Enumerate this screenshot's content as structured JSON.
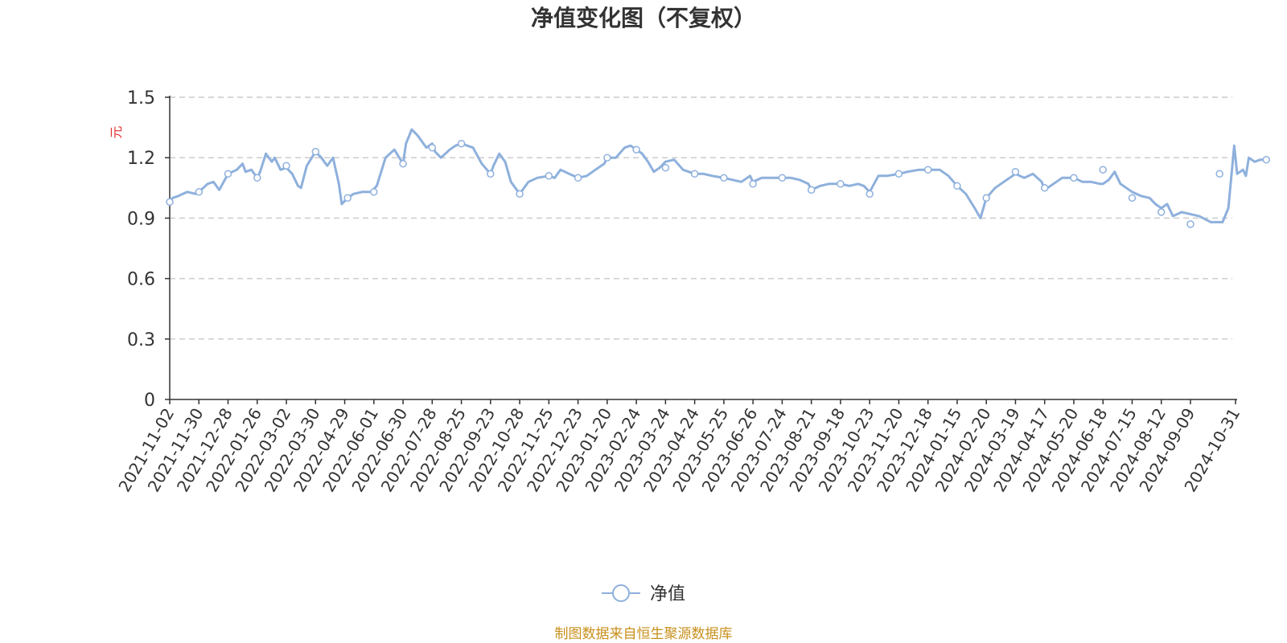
{
  "colors": {
    "series": "#8eb0dc",
    "axis": "#333333",
    "grid": "#cccccc",
    "ylabel": "#e03030",
    "source": "#c8901c"
  },
  "chart_data": {
    "type": "line",
    "title": "净值变化图（不复权）",
    "ylabel": "元",
    "xlabel": "",
    "ylim": [
      0,
      1.5
    ],
    "yticks": [
      "0",
      "0.3",
      "0.6",
      "0.9",
      "1.2",
      "1.5"
    ],
    "grid": true,
    "legend_position": "bottom-center",
    "x_tick_labels": [
      "2021-11-02",
      "2021-11-30",
      "2021-12-28",
      "2022-01-26",
      "2022-03-02",
      "2022-03-30",
      "2022-04-29",
      "2022-06-01",
      "2022-06-30",
      "2022-07-28",
      "2022-08-25",
      "2022-09-23",
      "2022-10-28",
      "2022-11-25",
      "2022-12-23",
      "2023-01-20",
      "2023-02-24",
      "2023-03-24",
      "2023-04-24",
      "2023-05-25",
      "2023-06-26",
      "2023-07-24",
      "2023-08-21",
      "2023-09-18",
      "2023-10-23",
      "2023-11-20",
      "2023-12-18",
      "2024-01-15",
      "2024-02-20",
      "2024-03-19",
      "2024-04-17",
      "2024-05-20",
      "2024-06-18",
      "2024-07-15",
      "2024-08-12",
      "2024-09-09",
      "2024-10-31"
    ],
    "series": [
      {
        "name": "净值",
        "points": [
          [
            0,
            0.98
          ],
          [
            0.1,
            1.0
          ],
          [
            0.3,
            1.01
          ],
          [
            0.6,
            1.03
          ],
          [
            0.9,
            1.02
          ],
          [
            1.0,
            1.03
          ],
          [
            1.3,
            1.07
          ],
          [
            1.5,
            1.08
          ],
          [
            1.7,
            1.04
          ],
          [
            2.0,
            1.12
          ],
          [
            2.3,
            1.14
          ],
          [
            2.5,
            1.17
          ],
          [
            2.6,
            1.13
          ],
          [
            2.8,
            1.14
          ],
          [
            3.0,
            1.1
          ],
          [
            3.1,
            1.13
          ],
          [
            3.3,
            1.22
          ],
          [
            3.5,
            1.18
          ],
          [
            3.6,
            1.2
          ],
          [
            3.8,
            1.14
          ],
          [
            4.0,
            1.15
          ],
          [
            4.2,
            1.12
          ],
          [
            4.4,
            1.06
          ],
          [
            4.5,
            1.05
          ],
          [
            4.7,
            1.16
          ],
          [
            5.0,
            1.23
          ],
          [
            5.2,
            1.2
          ],
          [
            5.4,
            1.16
          ],
          [
            5.6,
            1.2
          ],
          [
            5.8,
            1.07
          ],
          [
            5.9,
            0.97
          ],
          [
            6.1,
            1.0
          ],
          [
            6.3,
            1.02
          ],
          [
            6.6,
            1.03
          ],
          [
            6.9,
            1.03
          ],
          [
            7.1,
            1.06
          ],
          [
            7.4,
            1.2
          ],
          [
            7.7,
            1.24
          ],
          [
            8.0,
            1.17
          ],
          [
            8.1,
            1.27
          ],
          [
            8.3,
            1.34
          ],
          [
            8.5,
            1.31
          ],
          [
            8.8,
            1.25
          ],
          [
            9.0,
            1.27
          ],
          [
            9.1,
            1.23
          ],
          [
            9.3,
            1.2
          ],
          [
            9.6,
            1.24
          ],
          [
            9.8,
            1.26
          ],
          [
            10.0,
            1.27
          ],
          [
            10.2,
            1.26
          ],
          [
            10.4,
            1.25
          ],
          [
            10.7,
            1.17
          ],
          [
            11.0,
            1.12
          ],
          [
            11.1,
            1.16
          ],
          [
            11.3,
            1.22
          ],
          [
            11.5,
            1.18
          ],
          [
            11.7,
            1.08
          ],
          [
            12.0,
            1.02
          ],
          [
            12.3,
            1.08
          ],
          [
            12.6,
            1.1
          ],
          [
            13.0,
            1.11
          ],
          [
            13.2,
            1.1
          ],
          [
            13.4,
            1.14
          ],
          [
            13.7,
            1.12
          ],
          [
            14.0,
            1.1
          ],
          [
            14.3,
            1.11
          ],
          [
            14.6,
            1.14
          ],
          [
            14.9,
            1.17
          ],
          [
            15.0,
            1.2
          ],
          [
            15.3,
            1.2
          ],
          [
            15.6,
            1.25
          ],
          [
            15.8,
            1.26
          ],
          [
            16.0,
            1.24
          ],
          [
            16.2,
            1.22
          ],
          [
            16.4,
            1.18
          ],
          [
            16.6,
            1.13
          ],
          [
            16.8,
            1.15
          ],
          [
            17.0,
            1.18
          ],
          [
            17.3,
            1.19
          ],
          [
            17.6,
            1.14
          ],
          [
            18.0,
            1.12
          ],
          [
            18.3,
            1.12
          ],
          [
            18.6,
            1.11
          ],
          [
            19.0,
            1.1
          ],
          [
            19.3,
            1.09
          ],
          [
            19.6,
            1.08
          ],
          [
            19.9,
            1.11
          ],
          [
            20.0,
            1.08
          ],
          [
            20.3,
            1.1
          ],
          [
            20.6,
            1.1
          ],
          [
            21.0,
            1.1
          ],
          [
            21.3,
            1.1
          ],
          [
            21.6,
            1.09
          ],
          [
            21.9,
            1.07
          ],
          [
            22.0,
            1.04
          ],
          [
            22.3,
            1.06
          ],
          [
            22.6,
            1.07
          ],
          [
            23.0,
            1.07
          ],
          [
            23.3,
            1.06
          ],
          [
            23.6,
            1.07
          ],
          [
            23.8,
            1.06
          ],
          [
            24.0,
            1.03
          ],
          [
            24.3,
            1.11
          ],
          [
            24.6,
            1.11
          ],
          [
            25.0,
            1.12
          ],
          [
            25.3,
            1.13
          ],
          [
            25.7,
            1.14
          ],
          [
            26.0,
            1.14
          ],
          [
            26.4,
            1.14
          ],
          [
            26.7,
            1.11
          ],
          [
            27.0,
            1.06
          ],
          [
            27.3,
            1.02
          ],
          [
            27.6,
            0.95
          ],
          [
            27.8,
            0.9
          ],
          [
            28.0,
            1.0
          ],
          [
            28.3,
            1.05
          ],
          [
            28.6,
            1.08
          ],
          [
            29.0,
            1.12
          ],
          [
            29.3,
            1.1
          ],
          [
            29.6,
            1.12
          ],
          [
            29.9,
            1.08
          ],
          [
            30.0,
            1.04
          ],
          [
            30.3,
            1.07
          ],
          [
            30.6,
            1.1
          ],
          [
            31.0,
            1.1
          ],
          [
            31.3,
            1.08
          ],
          [
            31.6,
            1.08
          ],
          [
            31.9,
            1.07
          ],
          [
            32.0,
            1.07
          ],
          [
            32.2,
            1.09
          ],
          [
            32.4,
            1.13
          ],
          [
            32.6,
            1.07
          ],
          [
            33.0,
            1.03
          ],
          [
            33.3,
            1.01
          ],
          [
            33.6,
            1.0
          ],
          [
            33.8,
            0.97
          ],
          [
            34.0,
            0.95
          ],
          [
            34.2,
            0.97
          ],
          [
            34.4,
            0.91
          ],
          [
            34.7,
            0.93
          ],
          [
            35.0,
            0.92
          ],
          [
            35.3,
            0.91
          ],
          [
            35.7,
            0.88
          ],
          [
            35.9,
            0.88
          ],
          [
            36.1,
            0.88
          ],
          [
            36.3,
            0.95
          ],
          [
            36.5,
            1.26
          ],
          [
            36.6,
            1.12
          ],
          [
            36.8,
            1.14
          ],
          [
            36.9,
            1.11
          ],
          [
            37.0,
            1.2
          ],
          [
            37.2,
            1.18
          ],
          [
            37.4,
            1.19
          ],
          [
            37.6,
            1.19
          ]
        ],
        "marker_points": [
          [
            0,
            0.98
          ],
          [
            1.0,
            1.03
          ],
          [
            2.0,
            1.12
          ],
          [
            3.0,
            1.1
          ],
          [
            4.0,
            1.16
          ],
          [
            5.0,
            1.23
          ],
          [
            6.1,
            1.0
          ],
          [
            7.0,
            1.03
          ],
          [
            8.0,
            1.17
          ],
          [
            9.0,
            1.25
          ],
          [
            10.0,
            1.27
          ],
          [
            11.0,
            1.12
          ],
          [
            12.0,
            1.02
          ],
          [
            13.0,
            1.11
          ],
          [
            14.0,
            1.1
          ],
          [
            15.0,
            1.2
          ],
          [
            16.0,
            1.24
          ],
          [
            17.0,
            1.15
          ],
          [
            18.0,
            1.12
          ],
          [
            19.0,
            1.1
          ],
          [
            20.0,
            1.07
          ],
          [
            21.0,
            1.1
          ],
          [
            22.0,
            1.04
          ],
          [
            23.0,
            1.07
          ],
          [
            24.0,
            1.02
          ],
          [
            25.0,
            1.12
          ],
          [
            26.0,
            1.14
          ],
          [
            27.0,
            1.06
          ],
          [
            28.0,
            1.0
          ],
          [
            29.0,
            1.13
          ],
          [
            30.0,
            1.05
          ],
          [
            31.0,
            1.1
          ],
          [
            32.0,
            1.14
          ],
          [
            33.0,
            1.0
          ],
          [
            34.0,
            0.93
          ],
          [
            35.0,
            0.87
          ],
          [
            36.0,
            1.12
          ],
          [
            37.6,
            1.19
          ]
        ]
      }
    ],
    "legend": "净值",
    "source_note": "制图数据来自恒生聚源数据库"
  }
}
